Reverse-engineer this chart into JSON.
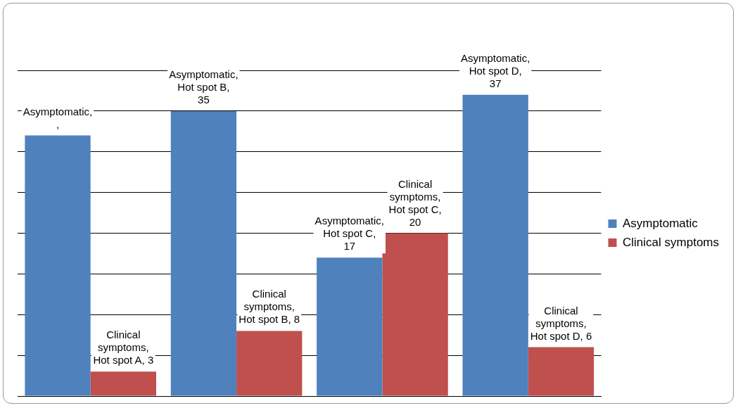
{
  "chart_data": {
    "type": "bar",
    "categories": [
      null,
      null,
      null,
      null
    ],
    "series": [
      {
        "name": "Asymptomatic",
        "color": "#4f81bd",
        "values": [
          32,
          35,
          17,
          37
        ],
        "value_labels": [
          "Asymptomatic, ,",
          "Asymptomatic, Hot spot B, 35",
          "Asymptomatic, Hot spot C, 17",
          "Asymptomatic, Hot spot D, 37"
        ]
      },
      {
        "name": "Clinical symptoms",
        "color": "#c0504d",
        "values": [
          3,
          8,
          20,
          6
        ],
        "value_labels": [
          "Clinical symptoms, Hot spot A, 3",
          "Clinical symptoms, Hot spot B, 8",
          "Clinical symptoms, Hot spot C, 20",
          "Clinical symptoms, Hot spot D, 6"
        ]
      }
    ],
    "ylim": [
      0,
      40
    ],
    "yticks": [
      {
        "value": 0,
        "label": null
      },
      {
        "value": 5,
        "label": null
      },
      {
        "value": 10,
        "label": null
      },
      {
        "value": 15,
        "label": null
      },
      {
        "value": 20,
        "label": null
      },
      {
        "value": 25,
        "label": null
      },
      {
        "value": 30,
        "label": null
      },
      {
        "value": 35,
        "label": null
      },
      {
        "value": 40,
        "label": null
      }
    ],
    "grid": "y",
    "tick_labels": false,
    "legend": "right"
  }
}
